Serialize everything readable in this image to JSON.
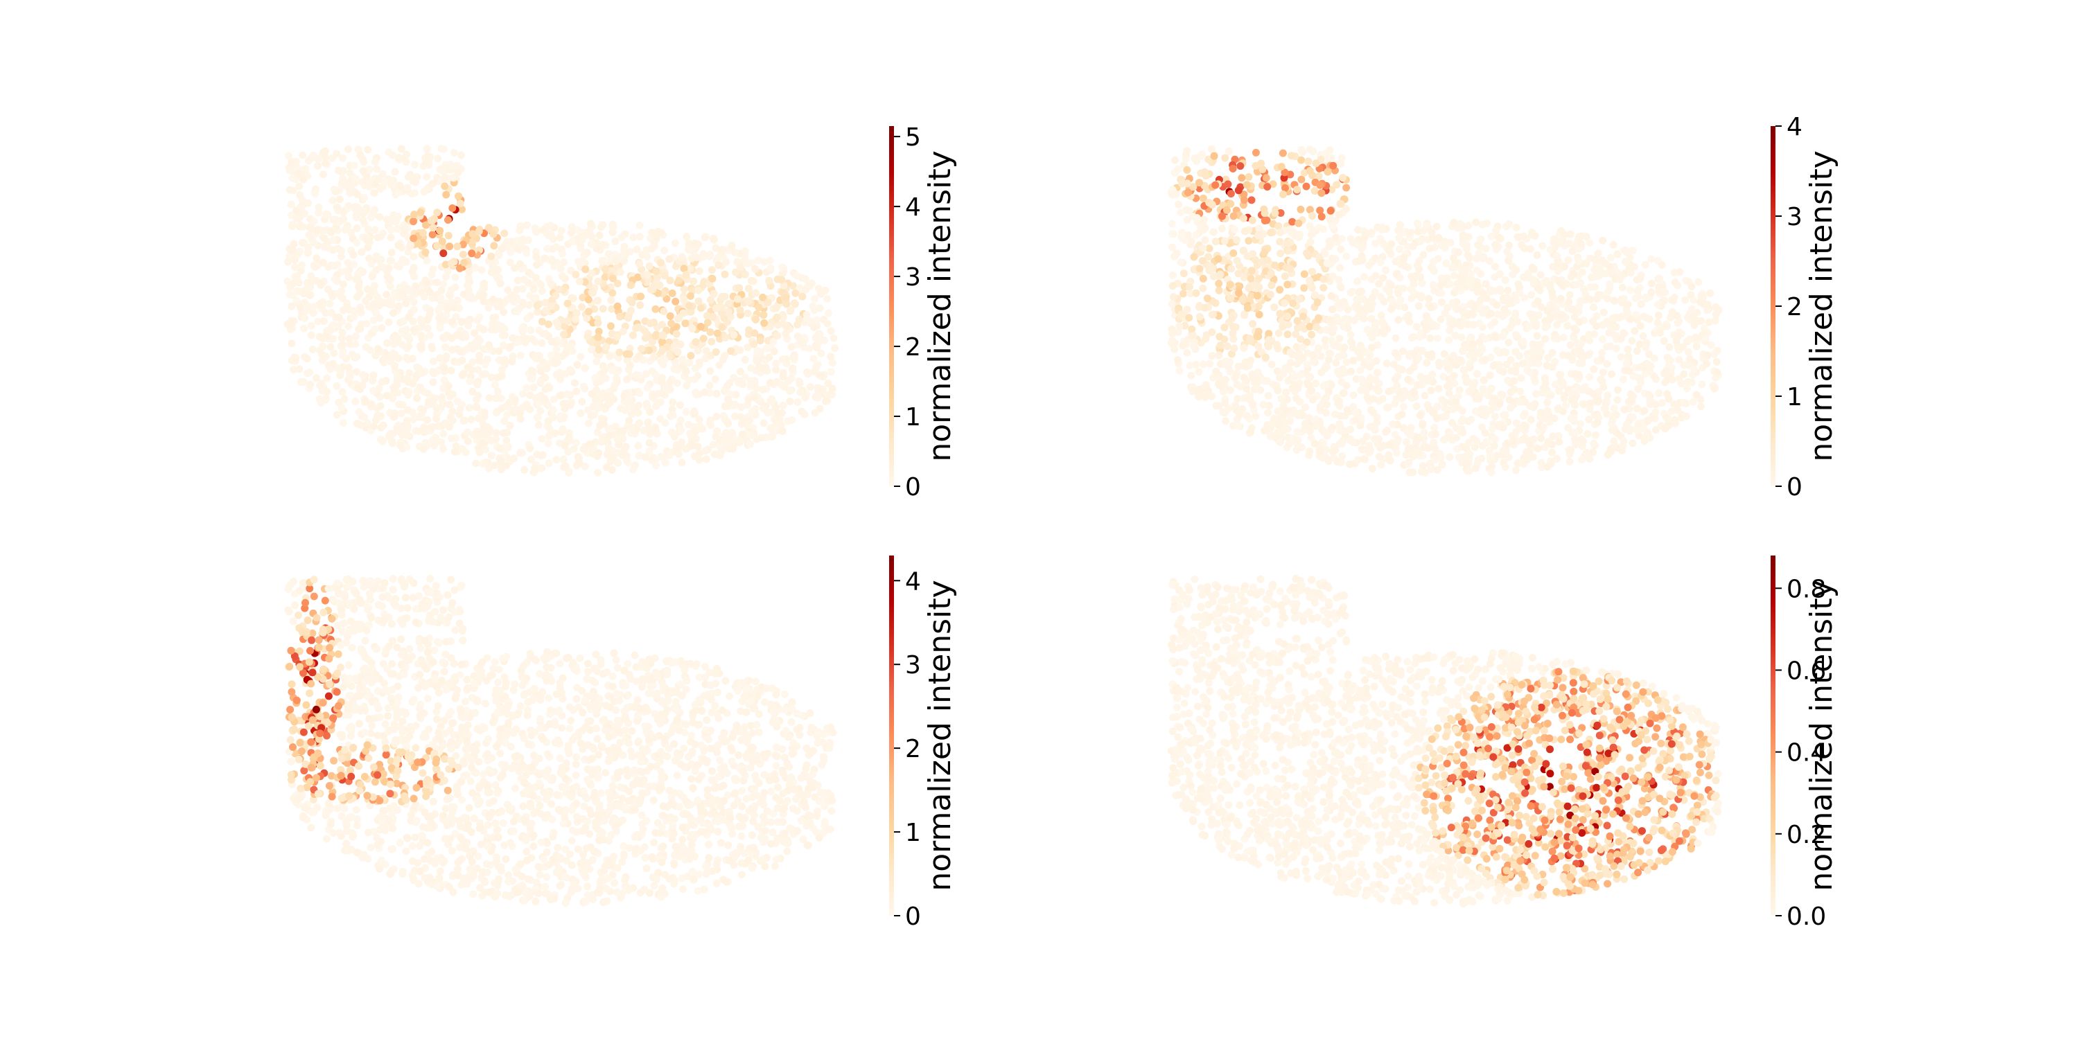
{
  "figure": {
    "background": "#ffffff",
    "colormap": "OrRd",
    "colormap_stops": [
      "#fff7ec",
      "#fee8c8",
      "#fdd49e",
      "#fdbb84",
      "#fc8d59",
      "#ef6548",
      "#d7301f",
      "#b30000",
      "#7f0000"
    ]
  },
  "chart_data": [
    {
      "type": "scatter",
      "panel": "top-left",
      "colorbar_label": "normalized intensity",
      "colorbar_range": [
        0,
        5.15
      ],
      "colorbar_ticks": [
        "0",
        "1",
        "2",
        "3",
        "4",
        "5"
      ],
      "colorbar_tick_values": [
        0,
        1,
        2,
        3,
        4,
        5
      ],
      "hotspots": [
        {
          "region": "upper notch",
          "x": [
            0.22,
            0.4
          ],
          "y": [
            0.62,
            0.88
          ],
          "peak_value": 5.1
        },
        {
          "region": "upper-right body",
          "x": [
            0.45,
            0.95
          ],
          "y": [
            0.35,
            0.65
          ],
          "peak_value": 1.6
        }
      ]
    },
    {
      "type": "scatter",
      "panel": "top-right",
      "colorbar_label": "normalized intensity",
      "colorbar_range": [
        0,
        4
      ],
      "colorbar_ticks": [
        "0",
        "1",
        "2",
        "3",
        "4"
      ],
      "colorbar_tick_values": [
        0,
        1,
        2,
        3,
        4
      ],
      "hotspots": [
        {
          "region": "top-left strip",
          "x": [
            0.01,
            0.33
          ],
          "y": [
            0.74,
            0.98
          ],
          "peak_value": 4.0
        },
        {
          "region": "left column",
          "x": [
            0.0,
            0.3
          ],
          "y": [
            0.35,
            0.74
          ],
          "peak_value": 1.2
        }
      ]
    },
    {
      "type": "scatter",
      "panel": "bottom-left",
      "colorbar_label": "normalized intensity",
      "colorbar_range": [
        0,
        4.3
      ],
      "colorbar_ticks": [
        "0",
        "1",
        "2",
        "3",
        "4"
      ],
      "colorbar_tick_values": [
        0,
        1,
        2,
        3,
        4
      ],
      "hotspots": [
        {
          "region": "left edge",
          "x": [
            0.0,
            0.1
          ],
          "y": [
            0.3,
            0.98
          ],
          "peak_value": 4.2
        },
        {
          "region": "lower-left arm",
          "x": [
            0.0,
            0.32
          ],
          "y": [
            0.3,
            0.48
          ],
          "peak_value": 3.3
        }
      ]
    },
    {
      "type": "scatter",
      "panel": "bottom-right",
      "colorbar_label": "normalized intensity",
      "colorbar_range": [
        0,
        0.88
      ],
      "colorbar_ticks": [
        "0.0",
        "0.2",
        "0.4",
        "0.6",
        "0.8"
      ],
      "colorbar_tick_values": [
        0,
        0.2,
        0.4,
        0.6,
        0.8
      ],
      "hotspots": [
        {
          "region": "lower-right body",
          "x": [
            0.45,
            1.0
          ],
          "y": [
            0.02,
            0.7
          ],
          "peak_value": 0.85
        }
      ]
    }
  ]
}
